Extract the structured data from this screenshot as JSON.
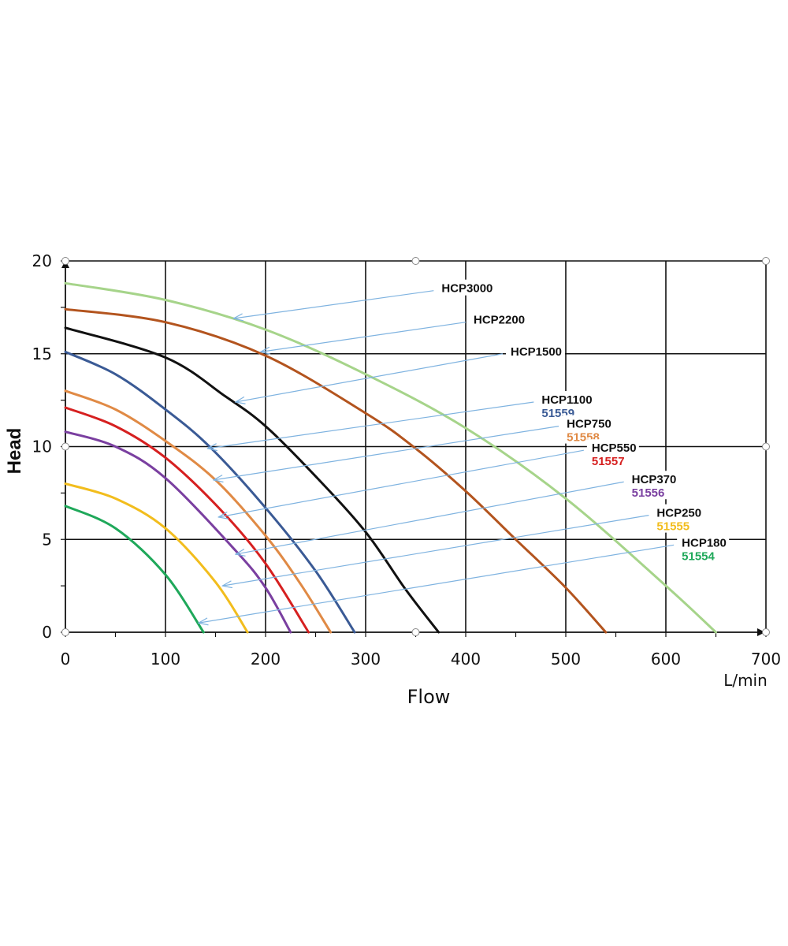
{
  "chart_data": {
    "type": "line",
    "title": "",
    "xlabel": "Flow",
    "xunit": "L/min",
    "ylabel": "Head",
    "xlim": [
      0,
      700
    ],
    "ylim": [
      0,
      20
    ],
    "x_ticks": [
      0,
      100,
      200,
      300,
      400,
      500,
      600,
      700
    ],
    "y_ticks": [
      0,
      5,
      10,
      15,
      20
    ],
    "grid": true,
    "series": [
      {
        "name": "HCP3000",
        "code": "",
        "color": "#a6d48a",
        "shutoff_head": 18.8,
        "max_flow": 650,
        "points": [
          [
            0,
            18.8
          ],
          [
            100,
            17.9
          ],
          [
            200,
            16.3
          ],
          [
            300,
            13.9
          ],
          [
            400,
            11.0
          ],
          [
            500,
            7.2
          ],
          [
            600,
            2.5
          ],
          [
            650,
            0
          ]
        ],
        "pointer": [
          [
            168,
            16.9
          ],
          [
            368,
            18.4
          ]
        ]
      },
      {
        "name": "HCP2200",
        "code": "",
        "color": "#b3541e",
        "shutoff_head": 17.4,
        "max_flow": 540,
        "points": [
          [
            0,
            17.4
          ],
          [
            100,
            16.7
          ],
          [
            200,
            14.9
          ],
          [
            300,
            11.8
          ],
          [
            350,
            9.9
          ],
          [
            400,
            7.6
          ],
          [
            450,
            5.0
          ],
          [
            500,
            2.4
          ],
          [
            540,
            0
          ]
        ],
        "pointer": [
          [
            195,
            15.1
          ],
          [
            400,
            16.7
          ]
        ]
      },
      {
        "name": "HCP1500",
        "code": "",
        "color": "#111111",
        "shutoff_head": 16.4,
        "max_flow": 373,
        "points": [
          [
            0,
            16.4
          ],
          [
            100,
            14.8
          ],
          [
            160,
            12.7
          ],
          [
            200,
            11.1
          ],
          [
            250,
            8.4
          ],
          [
            300,
            5.4
          ],
          [
            340,
            2.3
          ],
          [
            373,
            0
          ]
        ],
        "pointer": [
          [
            170,
            12.4
          ],
          [
            437,
            15.0
          ]
        ]
      },
      {
        "name": "HCP1100",
        "code": "51559",
        "color": "#3a5a95",
        "shutoff_head": 15.1,
        "max_flow": 289,
        "points": [
          [
            0,
            15.1
          ],
          [
            50,
            13.9
          ],
          [
            100,
            12.0
          ],
          [
            145,
            9.95
          ],
          [
            200,
            6.7
          ],
          [
            250,
            3.3
          ],
          [
            289,
            0
          ]
        ],
        "pointer": [
          [
            142,
            9.9
          ],
          [
            468,
            12.4
          ]
        ]
      },
      {
        "name": "HCP750",
        "code": "51558",
        "color": "#e08a45",
        "shutoff_head": 13.0,
        "max_flow": 265,
        "points": [
          [
            0,
            13.0
          ],
          [
            50,
            12.0
          ],
          [
            100,
            10.3
          ],
          [
            150,
            8.2
          ],
          [
            200,
            5.2
          ],
          [
            235,
            2.6
          ],
          [
            265,
            0
          ]
        ],
        "pointer": [
          [
            148,
            8.2
          ],
          [
            493,
            11.1
          ]
        ]
      },
      {
        "name": "HCP550",
        "code": "51557",
        "color": "#d62020",
        "shutoff_head": 12.1,
        "max_flow": 243,
        "points": [
          [
            0,
            12.1
          ],
          [
            50,
            11.1
          ],
          [
            100,
            9.4
          ],
          [
            155,
            6.6
          ],
          [
            200,
            3.7
          ],
          [
            243,
            0
          ]
        ],
        "pointer": [
          [
            153,
            6.2
          ],
          [
            518,
            9.8
          ]
        ]
      },
      {
        "name": "HCP370",
        "code": "51556",
        "color": "#7a3fa0",
        "shutoff_head": 10.8,
        "max_flow": 225,
        "points": [
          [
            0,
            10.8
          ],
          [
            50,
            10.0
          ],
          [
            100,
            8.3
          ],
          [
            170,
            4.4
          ],
          [
            200,
            2.4
          ],
          [
            225,
            0
          ]
        ],
        "pointer": [
          [
            170,
            4.2
          ],
          [
            558,
            8.1
          ]
        ]
      },
      {
        "name": "HCP250",
        "code": "51555",
        "color": "#f2bd1d",
        "shutoff_head": 8.0,
        "max_flow": 182,
        "points": [
          [
            0,
            8.0
          ],
          [
            50,
            7.2
          ],
          [
            100,
            5.6
          ],
          [
            150,
            2.7
          ],
          [
            182,
            0
          ]
        ],
        "pointer": [
          [
            157,
            2.5
          ],
          [
            583,
            6.3
          ]
        ]
      },
      {
        "name": "HCP180",
        "code": "51554",
        "color": "#1fa85a",
        "shutoff_head": 6.8,
        "max_flow": 138,
        "points": [
          [
            0,
            6.8
          ],
          [
            50,
            5.6
          ],
          [
            100,
            3.1
          ],
          [
            138,
            0
          ]
        ],
        "pointer": [
          [
            133,
            0.5
          ],
          [
            608,
            4.7
          ]
        ]
      }
    ]
  }
}
